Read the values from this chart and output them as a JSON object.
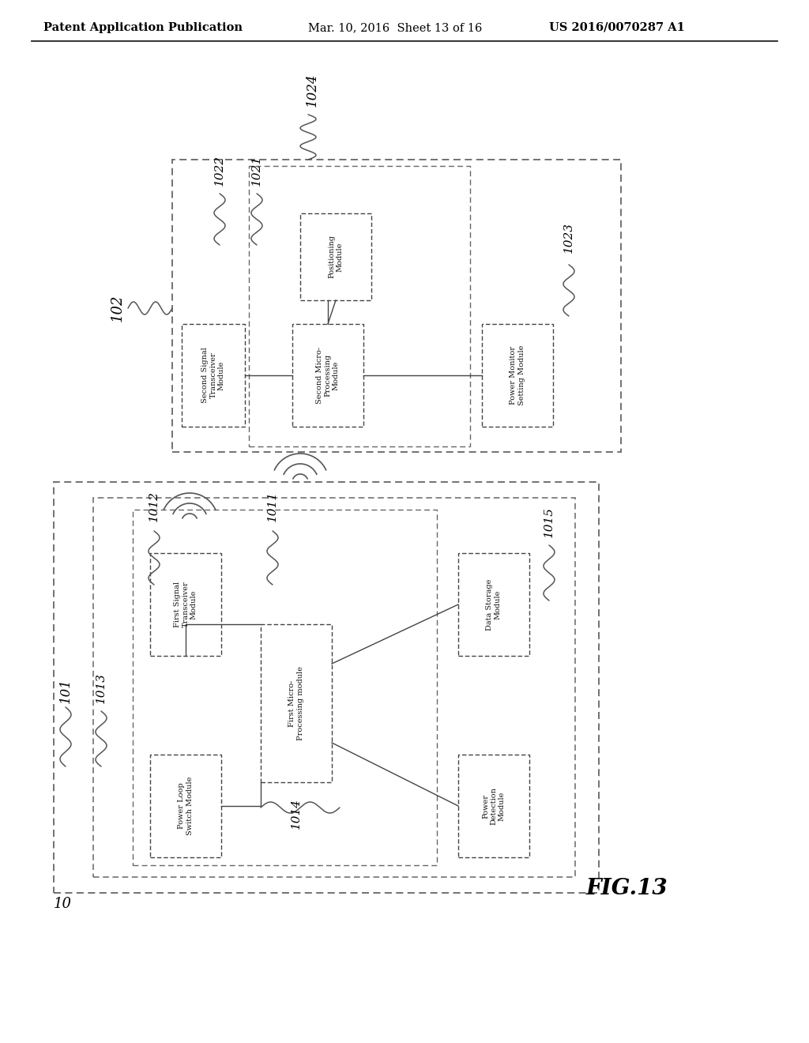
{
  "background_color": "#ffffff",
  "header_text": "Patent Application Publication",
  "header_date": "Mar. 10, 2016  Sheet 13 of 16",
  "header_patent": "US 2016/0070287 A1",
  "fig_label": "FIG.13"
}
